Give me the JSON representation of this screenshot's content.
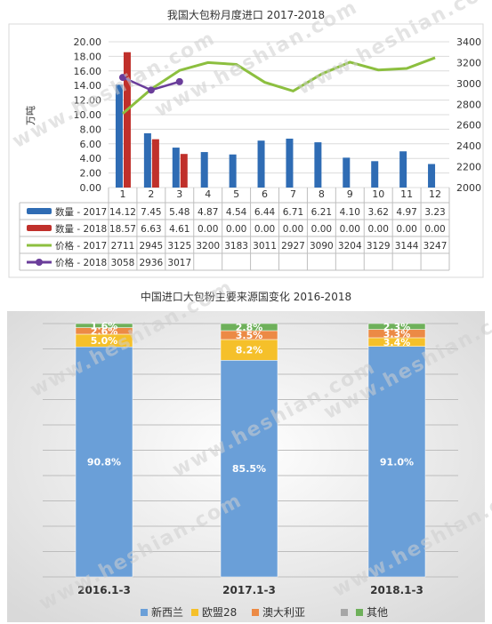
{
  "watermark": "www.heshian.com",
  "chart_data": [
    {
      "type": "bar+line",
      "title": "我国大包粉月度进口 2017-2018",
      "ylabel_left": "万吨",
      "ylim_left": [
        0,
        20
      ],
      "ylim_right": [
        2000,
        3400
      ],
      "yticks_left": [
        "0.00",
        "2.00",
        "4.00",
        "6.00",
        "8.00",
        "10.00",
        "12.00",
        "14.00",
        "16.00",
        "18.00",
        "20.00"
      ],
      "yticks_right": [
        "2000",
        "2200",
        "2400",
        "2600",
        "2800",
        "3000",
        "3200",
        "3400"
      ],
      "categories": [
        "1",
        "2",
        "3",
        "4",
        "5",
        "6",
        "7",
        "8",
        "9",
        "10",
        "11",
        "12"
      ],
      "series": [
        {
          "name": "数量 - 2017",
          "kind": "bar",
          "color": "#2f6cb4",
          "values": [
            14.12,
            7.45,
            5.48,
            4.87,
            4.54,
            6.44,
            6.71,
            6.21,
            4.1,
            3.62,
            4.97,
            3.23
          ],
          "labels": [
            "14.12",
            "7.45",
            "5.48",
            "4.87",
            "4.54",
            "6.44",
            "6.71",
            "6.21",
            "4.10",
            "3.62",
            "4.97",
            "3.23"
          ]
        },
        {
          "name": "数量 - 2018",
          "kind": "bar",
          "color": "#c0302b",
          "values": [
            18.57,
            6.63,
            4.61,
            0,
            0,
            0,
            0,
            0,
            0,
            0,
            0,
            0
          ],
          "labels": [
            "18.57",
            "6.63",
            "4.61",
            "0.00",
            "0.00",
            "0.00",
            "0.00",
            "0.00",
            "0.00",
            "0.00",
            "0.00",
            "0.00"
          ]
        },
        {
          "name": "价格 - 2017",
          "kind": "line",
          "color": "#8cbf3f",
          "values": [
            2711,
            2945,
            3125,
            3200,
            3183,
            3011,
            2927,
            3090,
            3204,
            3129,
            3144,
            3247
          ],
          "labels": [
            "2711",
            "2945",
            "3125",
            "3200",
            "3183",
            "3011",
            "2927",
            "3090",
            "3204",
            "3129",
            "3144",
            "3247"
          ]
        },
        {
          "name": "价格 - 2018",
          "kind": "line",
          "color": "#6a3d9a",
          "marker": true,
          "values": [
            3058,
            2936,
            3017,
            null,
            null,
            null,
            null,
            null,
            null,
            null,
            null,
            null
          ],
          "labels": [
            "3058",
            "2936",
            "3017",
            "",
            "",
            "",
            "",
            "",
            "",
            "",
            "",
            ""
          ]
        }
      ],
      "grid": true
    },
    {
      "type": "stacked-bar",
      "title": "中国进口大包粉主要来源国变化 2016-2018",
      "categories": [
        "2016.1-3",
        "2017.1-3",
        "2018.1-3"
      ],
      "series": [
        {
          "name": "新西兰",
          "color": "#6a9fd8",
          "values": [
            90.8,
            85.5,
            91.0
          ],
          "labels": [
            "90.8%",
            "85.5%",
            "91.0%"
          ]
        },
        {
          "name": "欧盟28",
          "color": "#f5c02a",
          "values": [
            5.0,
            8.2,
            3.4
          ],
          "labels": [
            "5.0%",
            "8.2%",
            "3.4%"
          ]
        },
        {
          "name": "澳大利亚",
          "color": "#ec8a45",
          "values": [
            2.6,
            3.5,
            3.3
          ],
          "labels": [
            "2.6%",
            "3.5%",
            "3.3%"
          ]
        },
        {
          "name": "",
          "color": "#a6a6a6",
          "values": [
            0,
            0,
            0
          ],
          "labels": [
            "",
            "",
            ""
          ]
        },
        {
          "name": "其他",
          "color": "#6eb05a",
          "values": [
            1.6,
            2.8,
            2.3
          ],
          "labels": [
            "1.6%",
            "2.8%",
            "2.3%"
          ]
        }
      ],
      "legend_position": "bottom",
      "grid": true
    }
  ]
}
